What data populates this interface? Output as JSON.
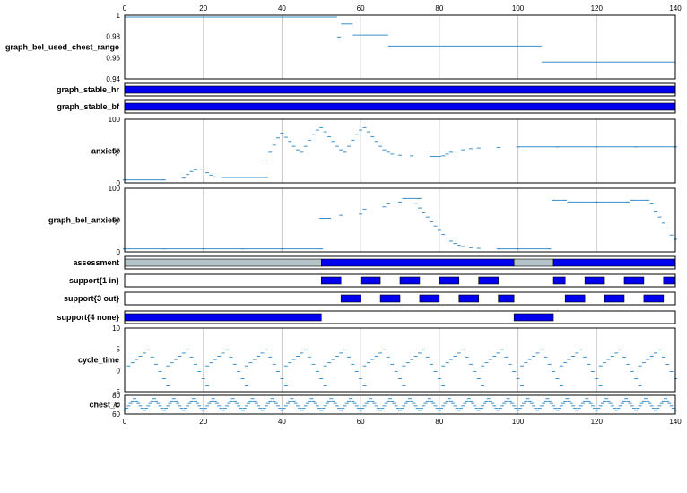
{
  "chart_data": {
    "type": "line",
    "x_axis": {
      "min": 0,
      "max": 140,
      "ticks": [
        0,
        20,
        40,
        60,
        80,
        100,
        120,
        140
      ]
    },
    "colors": {
      "trace": "#3a8fc8",
      "bar": "#0000ee",
      "grey": "#b4c3c8",
      "grid": "#c8c8c8"
    },
    "panels": [
      {
        "name": "graph_bel_used_chest_range",
        "label": "graph_bel_used_chest_range",
        "kind": "steps",
        "ylim": [
          0.94,
          1.0
        ],
        "yticks": [
          "1",
          "0.98",
          "0.96",
          "0.94"
        ],
        "segments": [
          [
            0,
            54,
            1.0
          ],
          [
            54,
            55,
            0.98
          ],
          [
            55,
            58,
            0.993
          ],
          [
            58,
            67,
            0.982
          ],
          [
            67,
            106,
            0.971
          ],
          [
            106,
            140,
            0.955
          ]
        ]
      },
      {
        "name": "graph_stable_hr",
        "label": "graph_stable_hr",
        "kind": "state",
        "bars": [
          {
            "start": 0,
            "end": 140,
            "color": "bar"
          }
        ]
      },
      {
        "name": "graph_stable_bf",
        "label": "graph_stable_bf",
        "kind": "state",
        "bars": [
          {
            "start": 0,
            "end": 140,
            "color": "bar"
          }
        ]
      },
      {
        "name": "anxiety",
        "label": "anxiety",
        "kind": "dots",
        "ylim": [
          0,
          100
        ],
        "yticks": [
          "100",
          "50",
          "0"
        ],
        "points": [
          [
            0,
            2
          ],
          [
            10,
            2
          ],
          [
            15,
            5
          ],
          [
            16,
            11
          ],
          [
            17,
            16
          ],
          [
            18,
            19
          ],
          [
            19,
            20
          ],
          [
            20,
            20
          ],
          [
            21,
            14
          ],
          [
            22,
            10
          ],
          [
            23,
            7
          ],
          [
            25,
            6
          ],
          [
            30,
            6
          ],
          [
            36,
            6
          ],
          [
            36,
            35
          ],
          [
            37,
            48
          ],
          [
            38,
            60
          ],
          [
            39,
            72
          ],
          [
            40,
            80
          ],
          [
            41,
            73
          ],
          [
            42,
            66
          ],
          [
            43,
            58
          ],
          [
            44,
            52
          ],
          [
            45,
            48
          ],
          [
            46,
            58
          ],
          [
            47,
            68
          ],
          [
            48,
            78
          ],
          [
            49,
            85
          ],
          [
            50,
            89
          ],
          [
            51,
            82
          ],
          [
            52,
            74
          ],
          [
            53,
            66
          ],
          [
            54,
            58
          ],
          [
            55,
            52
          ],
          [
            56,
            48
          ],
          [
            57,
            58
          ],
          [
            58,
            68
          ],
          [
            59,
            78
          ],
          [
            60,
            85
          ],
          [
            61,
            89
          ],
          [
            62,
            82
          ],
          [
            63,
            74
          ],
          [
            64,
            66
          ],
          [
            65,
            58
          ],
          [
            66,
            52
          ],
          [
            67,
            48
          ],
          [
            68,
            45
          ],
          [
            70,
            43
          ],
          [
            73,
            42
          ],
          [
            78,
            41
          ],
          [
            80,
            41
          ],
          [
            81,
            42
          ],
          [
            82,
            45
          ],
          [
            83,
            48
          ],
          [
            84,
            50
          ],
          [
            86,
            52
          ],
          [
            88,
            54
          ],
          [
            90,
            55
          ],
          [
            95,
            56
          ],
          [
            100,
            57
          ],
          [
            110,
            57
          ],
          [
            120,
            57
          ],
          [
            130,
            57
          ],
          [
            140,
            57
          ]
        ]
      },
      {
        "name": "graph_bel_anxiety",
        "label": "graph_bel_anxiety",
        "kind": "dots",
        "ylim": [
          0,
          100
        ],
        "yticks": [
          "100",
          "50",
          "0"
        ],
        "points": [
          [
            0,
            2
          ],
          [
            10,
            2
          ],
          [
            20,
            2
          ],
          [
            30,
            2
          ],
          [
            40,
            2
          ],
          [
            50,
            2
          ],
          [
            50,
            53
          ],
          [
            52,
            53
          ],
          [
            55,
            58
          ],
          [
            60,
            60
          ],
          [
            61,
            68
          ],
          [
            66,
            72
          ],
          [
            67,
            77
          ],
          [
            70,
            80
          ],
          [
            71,
            86
          ],
          [
            75,
            86
          ],
          [
            74,
            78
          ],
          [
            75,
            70
          ],
          [
            76,
            62
          ],
          [
            77,
            55
          ],
          [
            78,
            47
          ],
          [
            79,
            40
          ],
          [
            80,
            33
          ],
          [
            81,
            26
          ],
          [
            82,
            20
          ],
          [
            83,
            15
          ],
          [
            84,
            11
          ],
          [
            85,
            8
          ],
          [
            86,
            6
          ],
          [
            88,
            4
          ],
          [
            90,
            3
          ],
          [
            95,
            2
          ],
          [
            100,
            2
          ],
          [
            108,
            2
          ],
          [
            109,
            83
          ],
          [
            112,
            83
          ],
          [
            113,
            80
          ],
          [
            120,
            80
          ],
          [
            128,
            80
          ],
          [
            129,
            83
          ],
          [
            133,
            83
          ],
          [
            134,
            77
          ],
          [
            135,
            65
          ],
          [
            136,
            55
          ],
          [
            137,
            45
          ],
          [
            138,
            35
          ],
          [
            139,
            25
          ],
          [
            140,
            18
          ]
        ]
      },
      {
        "name": "assessment",
        "label": "assessment",
        "kind": "state",
        "bars": [
          {
            "start": 0,
            "end": 50,
            "color": "grey"
          },
          {
            "start": 50,
            "end": 99,
            "color": "bar"
          },
          {
            "start": 99,
            "end": 109,
            "color": "grey"
          },
          {
            "start": 109,
            "end": 140,
            "color": "bar"
          }
        ]
      },
      {
        "name": "support-1-in",
        "label": "support{1 in}",
        "kind": "state",
        "bars": [
          {
            "start": 50,
            "end": 55,
            "color": "bar"
          },
          {
            "start": 60,
            "end": 65,
            "color": "bar"
          },
          {
            "start": 70,
            "end": 75,
            "color": "bar"
          },
          {
            "start": 80,
            "end": 85,
            "color": "bar"
          },
          {
            "start": 90,
            "end": 95,
            "color": "bar"
          },
          {
            "start": 109,
            "end": 112,
            "color": "bar"
          },
          {
            "start": 117,
            "end": 122,
            "color": "bar"
          },
          {
            "start": 127,
            "end": 132,
            "color": "bar"
          },
          {
            "start": 137,
            "end": 140,
            "color": "bar"
          }
        ]
      },
      {
        "name": "support-3-out",
        "label": "support{3 out}",
        "kind": "state",
        "bars": [
          {
            "start": 55,
            "end": 60,
            "color": "bar"
          },
          {
            "start": 65,
            "end": 70,
            "color": "bar"
          },
          {
            "start": 75,
            "end": 80,
            "color": "bar"
          },
          {
            "start": 85,
            "end": 90,
            "color": "bar"
          },
          {
            "start": 95,
            "end": 99,
            "color": "bar"
          },
          {
            "start": 112,
            "end": 117,
            "color": "bar"
          },
          {
            "start": 122,
            "end": 127,
            "color": "bar"
          },
          {
            "start": 132,
            "end": 137,
            "color": "bar"
          }
        ]
      },
      {
        "name": "support-4-none",
        "label": "support{4 none}",
        "kind": "state",
        "bars": [
          {
            "start": 0,
            "end": 50,
            "color": "bar"
          },
          {
            "start": 99,
            "end": 109,
            "color": "bar"
          }
        ]
      },
      {
        "name": "cycle_time",
        "label": "cycle_time",
        "kind": "sawtooth",
        "ylim": [
          -5,
          10
        ],
        "yticks": [
          "10",
          "5",
          "0",
          "-5"
        ],
        "period": 10,
        "offset": 1,
        "rise": {
          "from": 1,
          "to": 5
        },
        "fall": {
          "from": 5,
          "to": -4
        }
      },
      {
        "name": "chest_c",
        "label": "chest_c",
        "kind": "sawtooth",
        "ylim": [
          60,
          80
        ],
        "yticks": [
          "80",
          "70",
          "60"
        ],
        "period": 5,
        "offset": 0,
        "rise": {
          "from": 62,
          "to": 78
        },
        "fall": {
          "from": 78,
          "to": 62
        }
      }
    ]
  }
}
